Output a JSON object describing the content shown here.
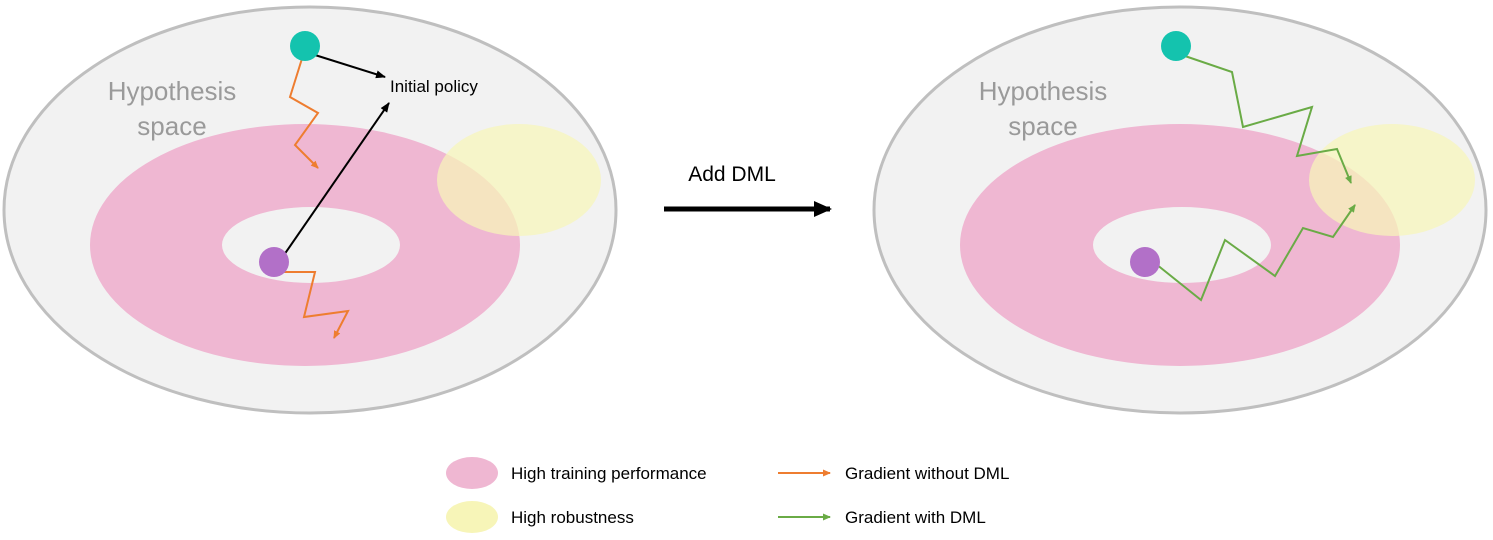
{
  "colors": {
    "hypothesis_fill": "#f2f2f2",
    "hypothesis_stroke": "#bfbfbf",
    "training_fill": "#efb7d2",
    "robust_fill": "#f7f5b8",
    "overlap_fill": "#f3d5b0",
    "policy_dot": "#14c3ae",
    "start_dot": "#b270c8",
    "gradient_without": "#ee7d30",
    "gradient_with": "#6aab46",
    "black": "#000000",
    "hypothesis_text": "#9a9a9a"
  },
  "left_panel": {
    "hypothesis_line1": "Hypothesis",
    "hypothesis_line2": "space",
    "initial_policy_label": "Initial policy"
  },
  "middle": {
    "transition_label": "Add DML"
  },
  "right_panel": {
    "hypothesis_line1": "Hypothesis",
    "hypothesis_line2": "space"
  },
  "legend": {
    "high_training": "High training performance",
    "high_robustness": "High robustness",
    "gradient_without": "Gradient without DML",
    "gradient_with": "Gradient with DML"
  }
}
